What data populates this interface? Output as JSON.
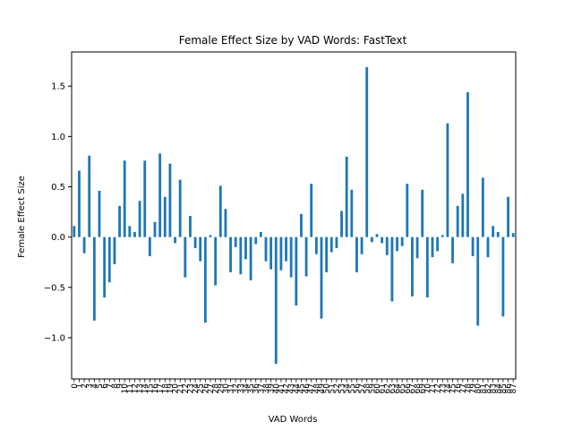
{
  "chart_data": {
    "type": "bar",
    "title": "Female Effect Size by VAD Words: FastText",
    "xlabel": "VAD Words",
    "ylabel": "Female Effect Size",
    "categories": [
      "0",
      "1",
      "2",
      "3",
      "4",
      "5",
      "6",
      "7",
      "8",
      "9",
      "10",
      "11",
      "12",
      "13",
      "14",
      "15",
      "16",
      "17",
      "18",
      "19",
      "20",
      "21",
      "22",
      "23",
      "24",
      "25",
      "26",
      "27",
      "28",
      "29",
      "30",
      "31",
      "32",
      "33",
      "34",
      "35",
      "36",
      "37",
      "38",
      "39",
      "40",
      "41",
      "42",
      "43",
      "44",
      "45",
      "46",
      "47",
      "48",
      "49",
      "50",
      "51",
      "52",
      "53",
      "54",
      "55",
      "56",
      "57",
      "58",
      "59",
      "60",
      "61",
      "62",
      "63",
      "64",
      "65",
      "66",
      "67",
      "68",
      "69",
      "70",
      "71",
      "72",
      "73",
      "74",
      "75",
      "76",
      "77",
      "78",
      "79",
      "80",
      "81",
      "82",
      "83",
      "84",
      "85",
      "86",
      "87"
    ],
    "values": [
      0.11,
      0.66,
      -0.16,
      0.81,
      -0.83,
      0.46,
      -0.6,
      -0.45,
      -0.27,
      0.31,
      0.76,
      0.11,
      0.05,
      0.36,
      0.76,
      -0.19,
      0.15,
      0.83,
      0.4,
      0.73,
      -0.06,
      0.57,
      -0.4,
      0.21,
      -0.11,
      -0.24,
      -0.85,
      0.02,
      -0.48,
      0.51,
      0.28,
      -0.35,
      -0.1,
      -0.37,
      -0.22,
      -0.43,
      -0.07,
      0.05,
      -0.24,
      -0.32,
      -1.26,
      -0.33,
      -0.24,
      -0.4,
      -0.68,
      0.23,
      -0.39,
      0.53,
      -0.17,
      -0.81,
      -0.35,
      -0.15,
      -0.11,
      0.26,
      0.8,
      0.47,
      -0.35,
      -0.17,
      1.69,
      -0.05,
      0.03,
      -0.06,
      -0.18,
      -0.64,
      -0.14,
      -0.09,
      0.53,
      -0.59,
      -0.21,
      0.47,
      -0.6,
      -0.2,
      -0.14,
      0.02,
      1.13,
      -0.26,
      0.31,
      0.43,
      1.44,
      -0.19,
      -0.88,
      0.59,
      -0.2,
      0.11,
      0.05,
      -0.79,
      0.4,
      0.04
    ],
    "ylim": [
      -1.41,
      1.84
    ],
    "yticks": [
      "−1.0",
      "−0.5",
      "0.0",
      "0.5",
      "1.0",
      "1.5"
    ],
    "ytick_values": [
      -1.0,
      -0.5,
      0.0,
      0.5,
      1.0,
      1.5
    ],
    "bar_color": "#1f77b4",
    "grid": false,
    "legend": false
  }
}
